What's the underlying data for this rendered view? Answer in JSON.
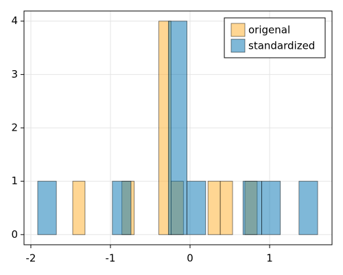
{
  "chart_data": {
    "type": "histogram",
    "series": [
      {
        "name": "origenal",
        "color": "#ffae28",
        "bins": [
          -1.474,
          -1.3195,
          -1.165,
          -1.0105,
          -0.856,
          -0.7015,
          -0.547,
          -0.3925,
          -0.238,
          -0.0835,
          0.071,
          0.2255,
          0.38,
          0.5345,
          0.689,
          0.8435
        ],
        "values": [
          1,
          0,
          0,
          0,
          1,
          0,
          0,
          4,
          1,
          0,
          0,
          1,
          1,
          0,
          1
        ]
      },
      {
        "name": "standardized",
        "color": "#0072b2",
        "bins": [
          -1.914,
          -1.6795,
          -1.445,
          -1.2105,
          -0.976,
          -0.7415,
          -0.507,
          -0.2725,
          -0.038,
          0.1965,
          0.431,
          0.6655,
          0.9,
          1.1345,
          1.369,
          1.6035
        ],
        "values": [
          1,
          0,
          0,
          0,
          1,
          0,
          0,
          4,
          1,
          0,
          0,
          1,
          1,
          0,
          1
        ]
      }
    ],
    "xlim": [
      -2.086,
      1.784
    ],
    "xticks": [
      -2,
      -1,
      0,
      1
    ],
    "ylim": [
      -0.19,
      4.19
    ],
    "yticks": [
      0,
      1,
      2,
      3,
      4
    ],
    "grid": true,
    "legend": "top-right"
  }
}
